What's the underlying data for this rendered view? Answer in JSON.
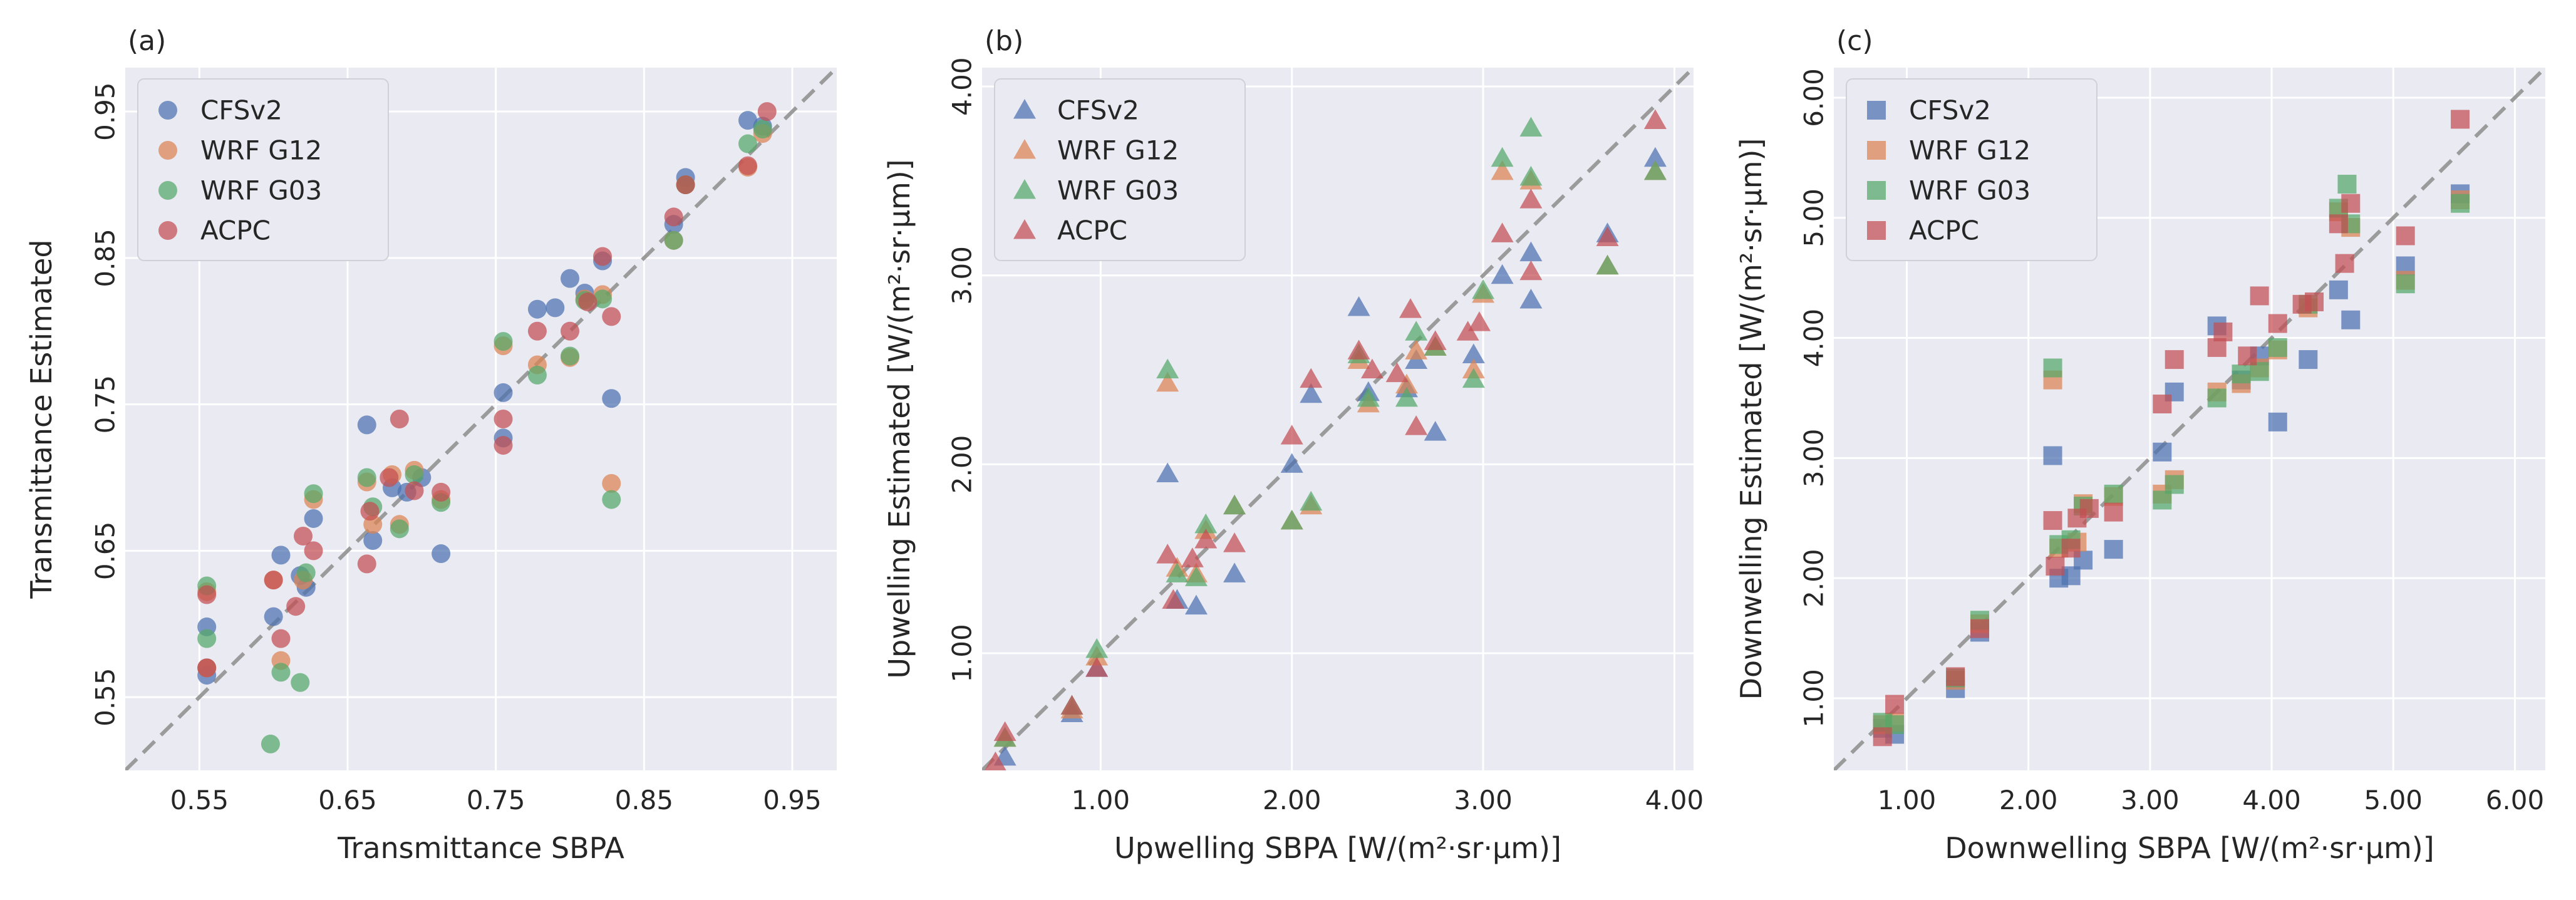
{
  "series_style": {
    "CFSv2": "#4C72B0",
    "WRF G12": "#DD8452",
    "WRF G03": "#55A868",
    "ACPC": "#C44E52"
  },
  "chart_data": [
    {
      "type": "scatter",
      "panel_label": "(a)",
      "marker": "circle",
      "xlabel": "Transmittance SBPA",
      "ylabel": "Transmittance Estimated",
      "xlim": [
        0.5,
        0.98
      ],
      "ylim": [
        0.5,
        0.98
      ],
      "xticks": [
        0.55,
        0.65,
        0.75,
        0.85,
        0.95
      ],
      "yticks": [
        0.55,
        0.65,
        0.75,
        0.85,
        0.95
      ],
      "tick_labels_x": [
        "0.55",
        "0.65",
        "0.75",
        "0.85",
        "0.95"
      ],
      "tick_labels_y": [
        "0.55",
        "0.65",
        "0.75",
        "0.85",
        "0.95"
      ],
      "legend": [
        "CFSv2",
        "WRF G12",
        "WRF G03",
        "ACPC"
      ],
      "legend_position": "top-left",
      "series": [
        {
          "name": "CFSv2",
          "x": [
            0.555,
            0.555,
            0.555,
            0.6,
            0.605,
            0.618,
            0.622,
            0.627,
            0.663,
            0.667,
            0.68,
            0.69,
            0.7,
            0.713,
            0.755,
            0.755,
            0.778,
            0.79,
            0.8,
            0.81,
            0.822,
            0.828,
            0.87,
            0.878,
            0.92,
            0.93
          ],
          "y": [
            0.565,
            0.598,
            0.57,
            0.605,
            0.647,
            0.633,
            0.625,
            0.672,
            0.736,
            0.657,
            0.693,
            0.69,
            0.7,
            0.648,
            0.758,
            0.727,
            0.815,
            0.816,
            0.836,
            0.826,
            0.848,
            0.754,
            0.873,
            0.905,
            0.944,
            0.94
          ]
        },
        {
          "name": "WRF G12",
          "x": [
            0.555,
            0.555,
            0.6,
            0.605,
            0.62,
            0.627,
            0.663,
            0.667,
            0.68,
            0.685,
            0.695,
            0.713,
            0.755,
            0.778,
            0.8,
            0.81,
            0.822,
            0.828,
            0.87,
            0.878,
            0.92,
            0.93
          ],
          "y": [
            0.622,
            0.57,
            0.63,
            0.575,
            0.63,
            0.685,
            0.697,
            0.668,
            0.702,
            0.668,
            0.705,
            0.685,
            0.79,
            0.777,
            0.782,
            0.822,
            0.825,
            0.696,
            0.862,
            0.9,
            0.912,
            0.935
          ]
        },
        {
          "name": "WRF G03",
          "x": [
            0.555,
            0.555,
            0.598,
            0.605,
            0.618,
            0.622,
            0.627,
            0.663,
            0.667,
            0.685,
            0.695,
            0.713,
            0.755,
            0.778,
            0.8,
            0.81,
            0.822,
            0.828,
            0.87,
            0.878,
            0.92,
            0.93
          ],
          "y": [
            0.626,
            0.59,
            0.518,
            0.567,
            0.56,
            0.635,
            0.689,
            0.7,
            0.68,
            0.665,
            0.702,
            0.683,
            0.793,
            0.77,
            0.783,
            0.821,
            0.822,
            0.685,
            0.862,
            0.9,
            0.928,
            0.938
          ]
        },
        {
          "name": "ACPC",
          "x": [
            0.555,
            0.555,
            0.6,
            0.605,
            0.615,
            0.62,
            0.627,
            0.663,
            0.665,
            0.678,
            0.685,
            0.695,
            0.713,
            0.755,
            0.755,
            0.778,
            0.8,
            0.812,
            0.822,
            0.828,
            0.87,
            0.878,
            0.92,
            0.933
          ],
          "y": [
            0.62,
            0.57,
            0.63,
            0.59,
            0.612,
            0.66,
            0.65,
            0.641,
            0.677,
            0.7,
            0.74,
            0.691,
            0.69,
            0.74,
            0.722,
            0.8,
            0.8,
            0.82,
            0.851,
            0.81,
            0.878,
            0.9,
            0.913,
            0.95
          ]
        }
      ]
    },
    {
      "type": "scatter",
      "panel_label": "(b)",
      "marker": "triangle",
      "xlabel": "Upwelling SBPA [W/(m²·sr·µm)]",
      "ylabel": "Upwelling Estimated [W/(m²·sr·µm)]",
      "xlim": [
        0.38,
        4.1
      ],
      "ylim": [
        0.38,
        4.1
      ],
      "xticks": [
        1,
        2,
        3,
        4
      ],
      "yticks": [
        1,
        2,
        3,
        4
      ],
      "tick_labels_x": [
        "1.00",
        "2.00",
        "3.00",
        "4.00"
      ],
      "tick_labels_y": [
        "1.00",
        "2.00",
        "3.00",
        "4.00"
      ],
      "legend": [
        "CFSv2",
        "WRF G12",
        "WRF G03",
        "ACPC"
      ],
      "legend_position": "top-left",
      "series": [
        {
          "name": "CFSv2",
          "x": [
            0.5,
            0.85,
            0.98,
            1.35,
            1.4,
            1.5,
            1.7,
            2.0,
            2.1,
            2.35,
            2.4,
            2.6,
            2.65,
            2.75,
            2.95,
            3.1,
            3.25,
            3.25,
            3.65,
            3.9
          ],
          "y": [
            0.45,
            0.68,
            0.92,
            1.95,
            1.28,
            1.25,
            1.42,
            2.0,
            2.37,
            2.83,
            2.38,
            2.4,
            2.55,
            2.17,
            2.58,
            3.0,
            3.12,
            2.87,
            3.22,
            3.62
          ]
        },
        {
          "name": "WRF G12",
          "x": [
            0.5,
            0.85,
            0.98,
            1.35,
            1.4,
            1.5,
            1.55,
            1.7,
            2.0,
            2.1,
            2.35,
            2.4,
            2.6,
            2.65,
            2.75,
            2.95,
            3.0,
            3.1,
            3.25,
            3.65,
            3.9
          ],
          "y": [
            0.55,
            0.7,
            0.98,
            2.43,
            1.45,
            1.42,
            1.65,
            1.78,
            1.7,
            1.78,
            2.55,
            2.32,
            2.42,
            2.6,
            2.62,
            2.5,
            2.9,
            3.55,
            3.5,
            3.05,
            3.55
          ]
        },
        {
          "name": "WRF G03",
          "x": [
            0.5,
            0.85,
            0.98,
            1.35,
            1.4,
            1.5,
            1.55,
            1.7,
            2.0,
            2.1,
            2.35,
            2.4,
            2.6,
            2.65,
            2.75,
            2.95,
            3.0,
            3.1,
            3.25,
            3.25,
            3.65,
            3.9
          ],
          "y": [
            0.55,
            0.72,
            1.02,
            2.5,
            1.42,
            1.4,
            1.68,
            1.78,
            1.7,
            1.8,
            2.58,
            2.35,
            2.35,
            2.7,
            2.62,
            2.45,
            2.92,
            3.62,
            3.78,
            3.52,
            3.05,
            3.55
          ]
        },
        {
          "name": "ACPC",
          "x": [
            0.45,
            0.5,
            0.85,
            0.98,
            1.35,
            1.38,
            1.48,
            1.55,
            1.7,
            2.0,
            2.1,
            2.35,
            2.42,
            2.55,
            2.62,
            2.65,
            2.75,
            2.92,
            2.98,
            3.1,
            3.25,
            3.25,
            3.65,
            3.9
          ],
          "y": [
            0.42,
            0.58,
            0.72,
            0.92,
            1.52,
            1.28,
            1.5,
            1.6,
            1.58,
            2.15,
            2.45,
            2.6,
            2.5,
            2.48,
            2.82,
            2.2,
            2.65,
            2.7,
            2.75,
            3.22,
            3.4,
            3.02,
            3.2,
            3.82
          ]
        }
      ]
    },
    {
      "type": "scatter",
      "panel_label": "(c)",
      "marker": "square",
      "xlabel": "Downwelling SBPA [W/(m²·sr·µm)]",
      "ylabel": "Downwelling Estimated [W/(m²·sr·µm)]",
      "xlim": [
        0.4,
        6.25
      ],
      "ylim": [
        0.4,
        6.25
      ],
      "xticks": [
        1,
        2,
        3,
        4,
        5,
        6
      ],
      "yticks": [
        1,
        2,
        3,
        4,
        5,
        6
      ],
      "tick_labels_x": [
        "1.00",
        "2.00",
        "3.00",
        "4.00",
        "5.00",
        "6.00"
      ],
      "tick_labels_y": [
        "1.00",
        "2.00",
        "3.00",
        "4.00",
        "5.00",
        "6.00"
      ],
      "legend": [
        "CFSv2",
        "WRF G12",
        "WRF G03",
        "ACPC"
      ],
      "legend_position": "top-left",
      "series": [
        {
          "name": "CFSv2",
          "x": [
            0.8,
            0.9,
            1.4,
            1.6,
            2.2,
            2.25,
            2.35,
            2.45,
            2.7,
            3.1,
            3.2,
            3.55,
            3.75,
            3.9,
            4.05,
            4.3,
            4.55,
            4.65,
            5.1,
            5.55
          ],
          "y": [
            0.75,
            0.7,
            1.08,
            1.55,
            3.02,
            2.0,
            2.02,
            2.15,
            2.24,
            3.05,
            3.55,
            4.1,
            3.65,
            3.85,
            3.3,
            3.82,
            4.4,
            4.15,
            4.6,
            5.2
          ]
        },
        {
          "name": "WRF G12",
          "x": [
            0.8,
            0.9,
            1.4,
            1.6,
            2.2,
            2.25,
            2.4,
            2.45,
            2.7,
            3.1,
            3.2,
            3.55,
            3.75,
            3.9,
            4.05,
            4.3,
            4.55,
            4.65,
            5.1,
            5.55
          ],
          "y": [
            0.78,
            0.8,
            1.15,
            1.62,
            3.65,
            2.25,
            2.3,
            2.62,
            2.68,
            2.7,
            2.82,
            3.55,
            3.62,
            3.75,
            3.9,
            4.25,
            5.05,
            4.92,
            4.48,
            5.15
          ]
        },
        {
          "name": "WRF G03",
          "x": [
            0.8,
            0.9,
            1.4,
            1.6,
            2.2,
            2.25,
            2.35,
            2.45,
            2.7,
            3.1,
            3.2,
            3.55,
            3.75,
            3.9,
            4.05,
            4.3,
            4.55,
            4.62,
            4.65,
            5.1,
            5.55
          ],
          "y": [
            0.8,
            0.78,
            1.17,
            1.65,
            3.75,
            2.28,
            2.32,
            2.6,
            2.7,
            2.65,
            2.78,
            3.5,
            3.7,
            3.72,
            3.92,
            4.28,
            5.08,
            5.28,
            4.95,
            4.45,
            5.12
          ]
        },
        {
          "name": "ACPC",
          "x": [
            0.8,
            0.9,
            1.4,
            1.6,
            2.2,
            2.22,
            2.35,
            2.4,
            2.5,
            2.7,
            3.1,
            3.2,
            3.55,
            3.6,
            3.8,
            3.9,
            4.05,
            4.25,
            4.35,
            4.55,
            4.6,
            4.65,
            5.1,
            5.55
          ],
          "y": [
            0.68,
            0.95,
            1.18,
            1.58,
            2.48,
            2.1,
            2.25,
            2.5,
            2.58,
            2.55,
            3.45,
            3.82,
            3.92,
            4.05,
            3.85,
            4.35,
            4.12,
            4.28,
            4.3,
            4.95,
            4.62,
            5.12,
            4.85,
            5.82
          ]
        }
      ]
    }
  ]
}
